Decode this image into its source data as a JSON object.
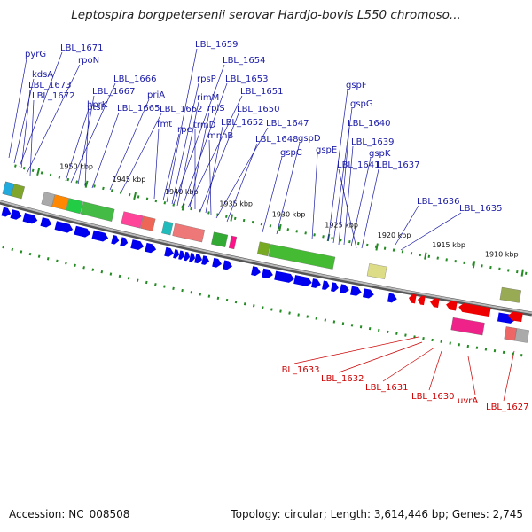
{
  "header": {
    "title": "Leptospira borgpetersenii serovar Hardjo-bovis L550 chromoso..."
  },
  "footer": {
    "accession": "Accession: NC_008508",
    "summary": "Topology: circular; Length: 3,614,446 bp; Genes: 2,745"
  },
  "colors": {
    "forward_label": "#1a1aa6",
    "reverse_label": "#cc0000",
    "forward_cds": "#0000ee",
    "reverse_cds": "#ee0000",
    "backbone": "#888888",
    "tick": "#228b22"
  },
  "scale_labels": [
    "1950 kbp",
    "1945 kbp",
    "1940 kbp",
    "1935 kbp",
    "1930 kbp",
    "1925 kbp",
    "1920 kbp",
    "1915 kbp",
    "1910 kbp"
  ],
  "forward_labels": [
    "pyrG",
    "LBL_1671",
    "rpoN",
    "kdsA",
    "LBL_1673",
    "LBL_1672",
    "hprK",
    "LBL_1666",
    "LBL_1667",
    "ptsH",
    "LBL_1665",
    "priA",
    "LBL_1662",
    "fmt",
    "rpe",
    "LBL_1659",
    "LBL_1654",
    "rpsP",
    "rimM",
    "LBL_1653",
    "LBL_1651",
    "rplS",
    "trmD",
    "LBL_1650",
    "LBL_1652",
    "mnhB",
    "LBL_1647",
    "LBL_1648",
    "gspC",
    "gspD",
    "gspE",
    "gspF",
    "gspG",
    "LBL_1640",
    "LBL_1639",
    "gspK",
    "LBL_1641",
    "LBL_1637",
    "LBL_1636",
    "LBL_1635"
  ],
  "reverse_labels": [
    "LBL_1633",
    "LBL_1632",
    "LBL_1631",
    "LBL_1630",
    "uvrA",
    "LBL_1627"
  ]
}
